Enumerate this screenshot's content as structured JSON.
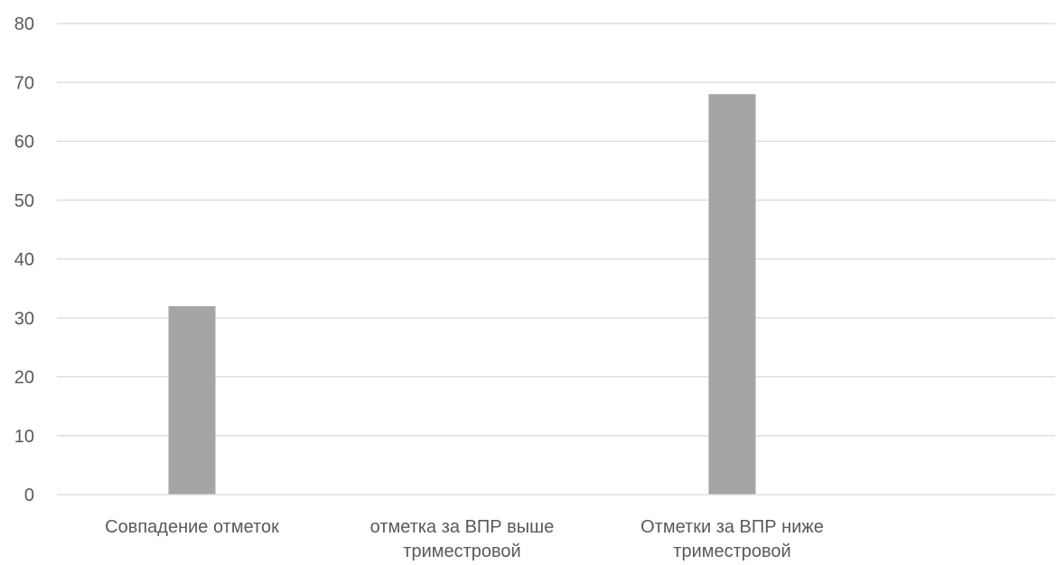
{
  "chart_data": {
    "type": "bar",
    "title": "",
    "xlabel": "",
    "ylabel": "",
    "ylim": [
      0,
      80
    ],
    "y_ticks": [
      0,
      10,
      20,
      30,
      40,
      50,
      60,
      70,
      80
    ],
    "grid": true,
    "legend": "none",
    "bar_color": "#a5a5a5",
    "categories": [
      [
        "Совпадение отметок"
      ],
      [
        "отметка за ВПР выше",
        "триместровой"
      ],
      [
        "Отметки за ВПР ниже",
        "триместровой"
      ]
    ],
    "values": [
      32,
      0,
      68
    ]
  }
}
